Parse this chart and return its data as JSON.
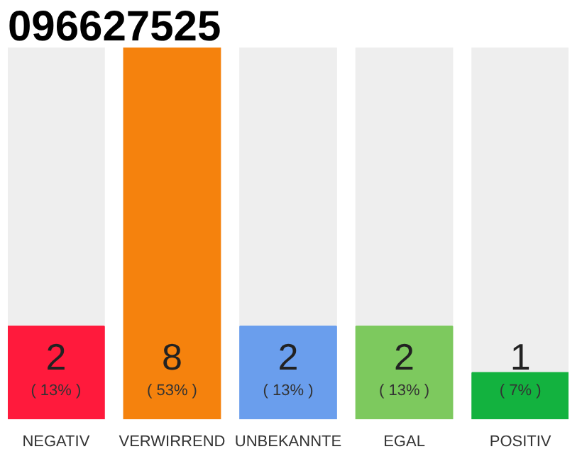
{
  "chart_data": {
    "type": "bar",
    "title": "096627525",
    "categories": [
      "NEGATIV",
      "VERWIRREND",
      "UNBEKANNTE",
      "EGAL",
      "POSITIV"
    ],
    "values": [
      2,
      8,
      2,
      2,
      1
    ],
    "colors": [
      "#ff1a3c",
      "#f5820d",
      "#6a9eed",
      "#7dc95e",
      "#13b23f"
    ],
    "ylim": [
      0,
      8
    ],
    "data_labels": true,
    "annotations": [
      "( 13% )",
      "( 53% )",
      "( 13% )",
      "( 13% )",
      "( 7% )"
    ]
  }
}
